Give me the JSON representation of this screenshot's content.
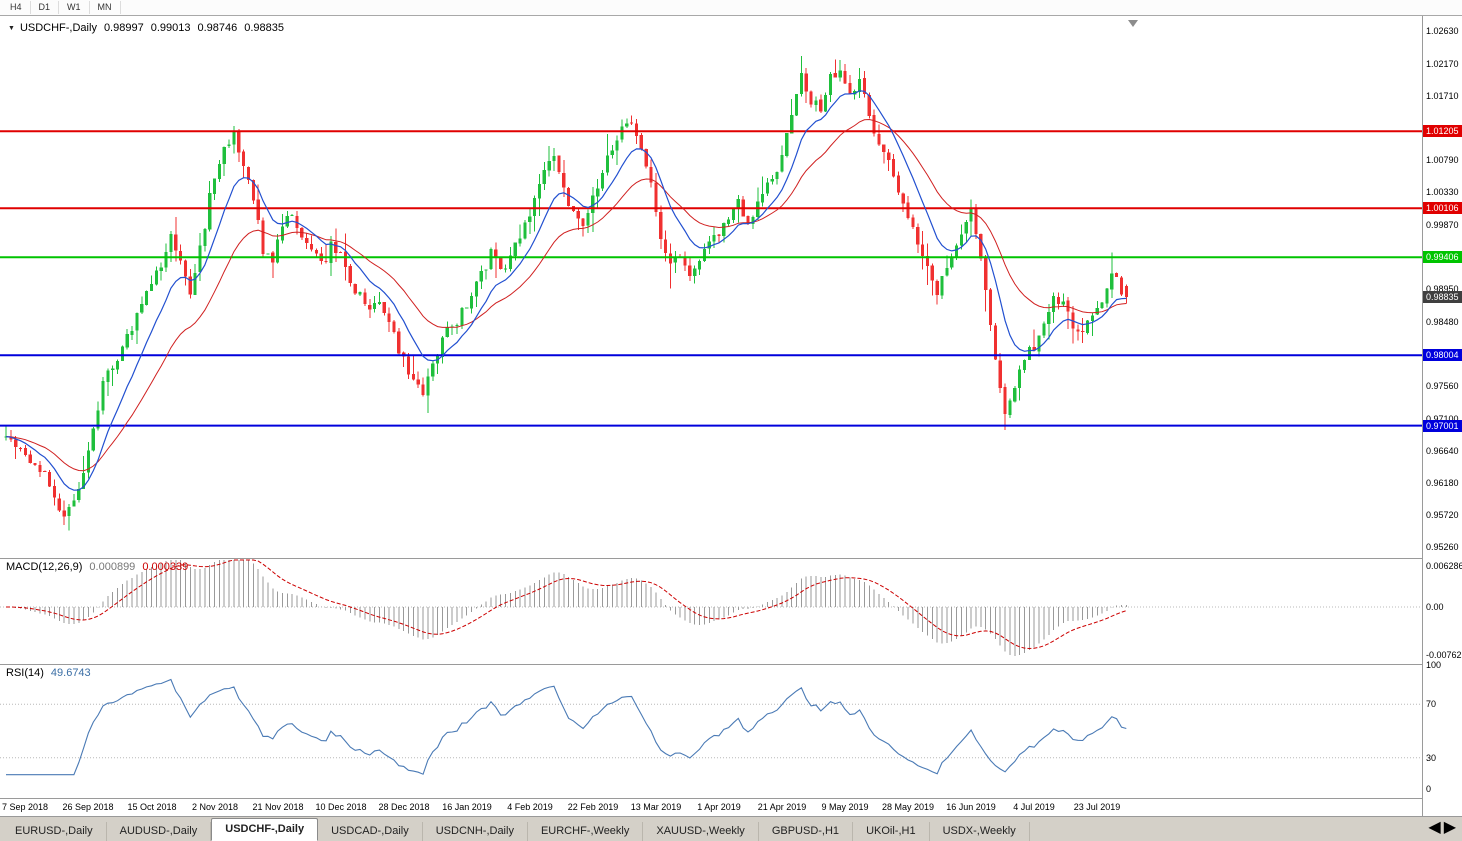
{
  "toolbar": {
    "timeframes": [
      {
        "label": "H4"
      },
      {
        "label": "D1"
      },
      {
        "label": "W1"
      },
      {
        "label": "MN"
      }
    ]
  },
  "chart_header": {
    "dropdown_icon": "▼",
    "symbol": "USDCHF-,Daily",
    "open": "0.98997",
    "high": "0.99013",
    "low": "0.98746",
    "close": "0.98835"
  },
  "macd_panel": {
    "title": "MACD(12,26,9)",
    "value_main": "0.000899",
    "value_signal": "0.000339",
    "axis": [
      {
        "label": "0.006286",
        "value": 0.006286
      },
      {
        "label": "0.00",
        "value": 0
      },
      {
        "label": "-0.00762",
        "value": -0.00762
      }
    ]
  },
  "rsi_panel": {
    "title": "RSI(14)",
    "value": "49.6743",
    "axis": [
      {
        "label": "100",
        "value": 100
      },
      {
        "label": "70",
        "value": 70
      },
      {
        "label": "30",
        "value": 30
      },
      {
        "label": "0",
        "value": 0
      }
    ]
  },
  "price_axis_ticks": [
    {
      "label": "1.02630",
      "value": 1.0263
    },
    {
      "label": "1.02170",
      "value": 1.0217
    },
    {
      "label": "1.01710",
      "value": 1.0171
    },
    {
      "label": "1.00790",
      "value": 1.0079
    },
    {
      "label": "1.00330",
      "value": 1.0033
    },
    {
      "label": "0.99870",
      "value": 0.9987
    },
    {
      "label": "0.98950",
      "value": 0.9895
    },
    {
      "label": "0.98480",
      "value": 0.9848
    },
    {
      "label": "0.97560",
      "value": 0.9756
    },
    {
      "label": "0.97100",
      "value": 0.971
    },
    {
      "label": "0.96640",
      "value": 0.9664
    },
    {
      "label": "0.96180",
      "value": 0.9618
    },
    {
      "label": "0.95720",
      "value": 0.9572
    },
    {
      "label": "0.95260",
      "value": 0.9526
    }
  ],
  "levels": [
    {
      "label": "1.01205",
      "value": 1.01205,
      "color": "#e00000",
      "kind": "resistance"
    },
    {
      "label": "1.00106",
      "value": 1.00106,
      "color": "#e00000",
      "kind": "resistance"
    },
    {
      "label": "0.99406",
      "value": 0.99406,
      "color": "#00c400",
      "kind": "pivot"
    },
    {
      "label": "0.98004",
      "value": 0.98004,
      "color": "#0000dc",
      "kind": "support"
    },
    {
      "label": "0.97001",
      "value": 0.97001,
      "color": "#0000dc",
      "kind": "support"
    }
  ],
  "current_price": {
    "label": "0.98835",
    "value": 0.98835,
    "badge_color": "#3f3f3f"
  },
  "dates": [
    {
      "label": "7 Sep 2018",
      "bar": 4
    },
    {
      "label": "26 Sep 2018",
      "bar": 17
    },
    {
      "label": "15 Oct 2018",
      "bar": 30
    },
    {
      "label": "2 Nov 2018",
      "bar": 43
    },
    {
      "label": "21 Nov 2018",
      "bar": 56
    },
    {
      "label": "10 Dec 2018",
      "bar": 69
    },
    {
      "label": "28 Dec 2018",
      "bar": 82
    },
    {
      "label": "16 Jan 2019",
      "bar": 95
    },
    {
      "label": "4 Feb 2019",
      "bar": 108
    },
    {
      "label": "22 Feb 2019",
      "bar": 121
    },
    {
      "label": "13 Mar 2019",
      "bar": 134
    },
    {
      "label": "1 Apr 2019",
      "bar": 147
    },
    {
      "label": "21 Apr 2019",
      "bar": 160
    },
    {
      "label": "9 May 2019",
      "bar": 173
    },
    {
      "label": "28 May 2019",
      "bar": 186
    },
    {
      "label": "16 Jun 2019",
      "bar": 199
    },
    {
      "label": "4 Jul 2019",
      "bar": 212
    },
    {
      "label": "23 Jul 2019",
      "bar": 225
    }
  ],
  "tabs": [
    {
      "label": "EURUSD-,Daily",
      "active": false
    },
    {
      "label": "AUDUSD-,Daily",
      "active": false
    },
    {
      "label": "USDCHF-,Daily",
      "active": true
    },
    {
      "label": "USDCAD-,Daily",
      "active": false
    },
    {
      "label": "USDCNH-,Daily",
      "active": false
    },
    {
      "label": "EURCHF-,Weekly",
      "active": false
    },
    {
      "label": "XAUUSD-,Weekly",
      "active": false
    },
    {
      "label": "GBPUSD-,H1",
      "active": false
    },
    {
      "label": "UKOil-,H1",
      "active": false
    },
    {
      "label": "USDX-,Weekly",
      "active": false
    }
  ],
  "tab_nav": {
    "left": "◀",
    "right": "▶"
  },
  "chart_data": {
    "type": "candlestick",
    "symbol": "USDCHF",
    "timeframe": "Daily",
    "bars_count": 232,
    "visible_price_range": {
      "min": 0.9511,
      "max": 1.0285
    },
    "last_bar": {
      "open": 0.98997,
      "high": 0.99013,
      "low": 0.98746,
      "close": 0.98835
    },
    "close_anchors": [
      [
        0,
        0.969
      ],
      [
        2,
        0.967
      ],
      [
        4,
        0.966
      ],
      [
        6,
        0.9645
      ],
      [
        9,
        0.962
      ],
      [
        12,
        0.957
      ],
      [
        14,
        0.9585
      ],
      [
        17,
        0.9665
      ],
      [
        20,
        0.976
      ],
      [
        23,
        0.9795
      ],
      [
        26,
        0.984
      ],
      [
        29,
        0.9885
      ],
      [
        32,
        0.993
      ],
      [
        34,
        0.9975
      ],
      [
        36,
        0.993
      ],
      [
        38,
        0.988
      ],
      [
        40,
        0.995
      ],
      [
        43,
        1.006
      ],
      [
        45,
        1.0095
      ],
      [
        47,
        1.0115
      ],
      [
        49,
        1.0075
      ],
      [
        51,
        1.003
      ],
      [
        53,
        0.9945
      ],
      [
        55,
        0.9935
      ],
      [
        57,
        0.999
      ],
      [
        59,
        1.0
      ],
      [
        61,
        0.997
      ],
      [
        63,
        0.9945
      ],
      [
        65,
        0.993
      ],
      [
        67,
        0.9955
      ],
      [
        69,
        0.9945
      ],
      [
        71,
        0.991
      ],
      [
        73,
        0.9885
      ],
      [
        75,
        0.986
      ],
      [
        77,
        0.9875
      ],
      [
        79,
        0.984
      ],
      [
        81,
        0.981
      ],
      [
        83,
        0.978
      ],
      [
        85,
        0.9765
      ],
      [
        86,
        0.9745
      ],
      [
        88,
        0.979
      ],
      [
        90,
        0.982
      ],
      [
        92,
        0.9845
      ],
      [
        94,
        0.986
      ],
      [
        96,
        0.9885
      ],
      [
        98,
        0.9915
      ],
      [
        100,
        0.9945
      ],
      [
        102,
        0.992
      ],
      [
        104,
        0.994
      ],
      [
        106,
        0.9975
      ],
      [
        108,
        1.0
      ],
      [
        110,
        1.004
      ],
      [
        112,
        1.0075
      ],
      [
        113,
        1.0085
      ],
      [
        115,
        1.004
      ],
      [
        117,
        1.0
      ],
      [
        119,
        0.999
      ],
      [
        121,
        1.0025
      ],
      [
        123,
        1.006
      ],
      [
        125,
        1.0095
      ],
      [
        127,
        1.0125
      ],
      [
        129,
        1.014
      ],
      [
        131,
        1.01
      ],
      [
        133,
        1.004
      ],
      [
        135,
        0.997
      ],
      [
        137,
        0.9925
      ],
      [
        139,
        0.9945
      ],
      [
        141,
        0.991
      ],
      [
        143,
        0.9935
      ],
      [
        145,
        0.9955
      ],
      [
        147,
        0.9975
      ],
      [
        149,
        1.0
      ],
      [
        151,
        1.0015
      ],
      [
        153,
        0.999
      ],
      [
        155,
        1.0015
      ],
      [
        157,
        1.004
      ],
      [
        159,
        1.007
      ],
      [
        161,
        1.012
      ],
      [
        163,
        1.018
      ],
      [
        164,
        1.0205
      ],
      [
        166,
        1.0165
      ],
      [
        168,
        1.015
      ],
      [
        170,
        1.0195
      ],
      [
        172,
        1.021
      ],
      [
        174,
        1.018
      ],
      [
        176,
        1.019
      ],
      [
        178,
        1.014
      ],
      [
        180,
        1.0105
      ],
      [
        182,
        1.0075
      ],
      [
        184,
        1.004
      ],
      [
        186,
        1.0005
      ],
      [
        188,
        0.996
      ],
      [
        190,
        0.992
      ],
      [
        192,
        0.9895
      ],
      [
        194,
        0.993
      ],
      [
        196,
        0.9955
      ],
      [
        198,
        0.9985
      ],
      [
        199,
        1.0005
      ],
      [
        201,
        0.9935
      ],
      [
        203,
        0.984
      ],
      [
        205,
        0.975
      ],
      [
        206,
        0.971
      ],
      [
        208,
        0.9745
      ],
      [
        210,
        0.98
      ],
      [
        212,
        0.9815
      ],
      [
        214,
        0.9855
      ],
      [
        216,
        0.9885
      ],
      [
        218,
        0.987
      ],
      [
        220,
        0.9845
      ],
      [
        222,
        0.984
      ],
      [
        224,
        0.986
      ],
      [
        226,
        0.988
      ],
      [
        228,
        0.9915
      ],
      [
        230,
        0.9895
      ],
      [
        231,
        0.98835
      ]
    ],
    "spikes": [
      {
        "i": 12,
        "low": 0.9558
      },
      {
        "i": 47,
        "high": 1.0128
      },
      {
        "i": 86,
        "low": 0.9742
      },
      {
        "i": 129,
        "high": 1.0143
      },
      {
        "i": 137,
        "low": 0.9896
      },
      {
        "i": 164,
        "high": 1.0228
      },
      {
        "i": 172,
        "high": 1.0218
      },
      {
        "i": 206,
        "low": 0.9694
      },
      {
        "i": 228,
        "high": 0.9947
      }
    ],
    "macd_axis_range": {
      "top": 0.00751,
      "bottom": -0.00874
    },
    "rsi_levels": [
      70,
      30
    ],
    "colors": {
      "up": "#1fbf3c",
      "down": "#f03030",
      "ma_fast": "#2250d0",
      "ma_slow": "#d02020",
      "macd_hist": "#9a9a9a",
      "macd_signal": "#cc0000",
      "rsi": "#4a7ab5",
      "level_dotted": "#b8b8b8"
    }
  }
}
